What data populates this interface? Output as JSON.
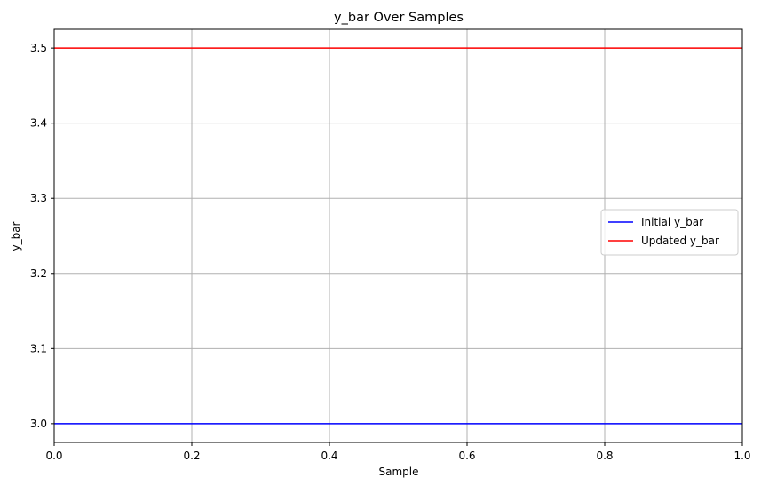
{
  "chart_data": {
    "type": "line",
    "title": "y_bar Over Samples",
    "xlabel": "Sample",
    "ylabel": "y_bar",
    "xlim": [
      0.0,
      1.0
    ],
    "ylim": [
      2.975,
      3.525
    ],
    "x_ticks": [
      0.0,
      0.2,
      0.4,
      0.6,
      0.8,
      1.0
    ],
    "x_tick_labels": [
      "0.0",
      "0.2",
      "0.4",
      "0.6",
      "0.8",
      "1.0"
    ],
    "y_ticks": [
      3.0,
      3.1,
      3.2,
      3.3,
      3.4,
      3.5
    ],
    "y_tick_labels": [
      "3.0",
      "3.1",
      "3.2",
      "3.3",
      "3.4",
      "3.5"
    ],
    "grid": true,
    "legend_position": "center-right",
    "series": [
      {
        "name": "Initial y_bar",
        "color": "#0000ff",
        "x": [
          0.0,
          1.0
        ],
        "y": [
          3.0,
          3.0
        ]
      },
      {
        "name": "Updated y_bar",
        "color": "#ff0000",
        "x": [
          0.0,
          1.0
        ],
        "y": [
          3.5,
          3.5
        ]
      }
    ]
  }
}
